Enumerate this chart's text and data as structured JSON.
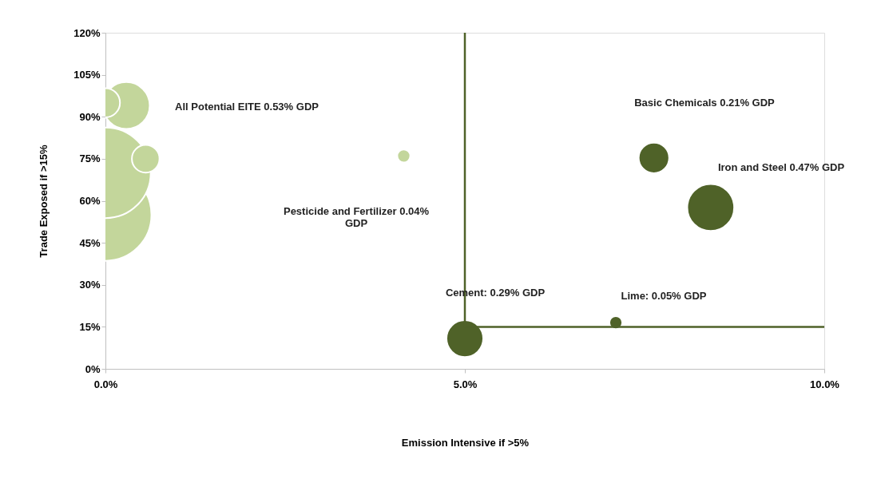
{
  "chart_data": {
    "type": "bubble",
    "xlabel": "Emission Intensive if >5%",
    "ylabel": "Trade Exposed if >15%",
    "xlim": [
      0,
      10
    ],
    "xticks": [
      {
        "value": 0,
        "label": "0.0%"
      },
      {
        "value": 5,
        "label": "5.0%"
      },
      {
        "value": 10,
        "label": "10.0%"
      }
    ],
    "ylim": [
      0,
      120
    ],
    "yticks": [
      {
        "value": 0,
        "label": "0%"
      },
      {
        "value": 15,
        "label": "15%"
      },
      {
        "value": 30,
        "label": "30%"
      },
      {
        "value": 45,
        "label": "45%"
      },
      {
        "value": 60,
        "label": "60%"
      },
      {
        "value": 75,
        "label": "75%"
      },
      {
        "value": 90,
        "label": "90%"
      },
      {
        "value": 105,
        "label": "105%"
      },
      {
        "value": 120,
        "label": "120%"
      }
    ],
    "grid": false,
    "series": [
      {
        "color": "#c3d69b",
        "x": [
          0,
          0,
          0.56,
          0.29,
          0,
          4.15
        ],
        "values": [
          55,
          70,
          75,
          94,
          95,
          76
        ],
        "sizes": [
          1,
          0.97,
          0.09,
          0.26,
          0.1,
          0.02
        ]
      },
      {
        "color": "#4f6228",
        "x": [
          7.63,
          8.42,
          5.0,
          7.1
        ],
        "values": [
          75.3,
          57.6,
          10.8,
          16.5
        ],
        "sizes": [
          0.11,
          0.26,
          0.16,
          0.02
        ]
      },
      {
        "type": "line",
        "color": "#4f6228",
        "x": [
          5,
          5,
          10
        ],
        "values": [
          120,
          15,
          15
        ]
      }
    ],
    "annotations": [
      "All Potential EITE 0.53% GDP",
      "Basic Chemicals 0.21% GDP",
      "Iron and Steel 0.47% GDP",
      "Pesticide and Fertilizer 0.04%\nGDP",
      "Cement: 0.29% GDP",
      "Lime: 0.05% GDP"
    ]
  }
}
